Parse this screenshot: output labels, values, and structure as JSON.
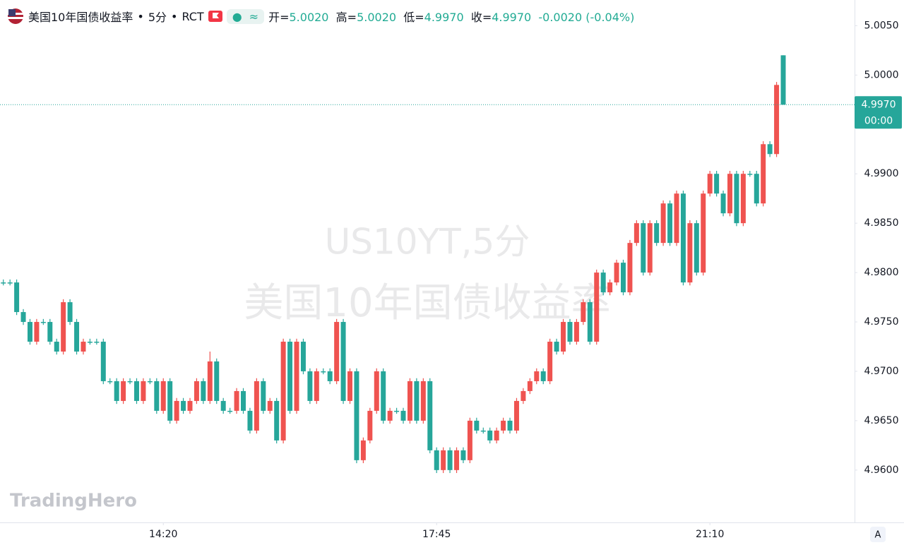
{
  "chart_data": {
    "type": "candlestick",
    "title": "美国10年国债收益率",
    "interval": "5分",
    "source": "RCT",
    "watermark": [
      "US10YT,5分",
      "美国10年国债收益率"
    ],
    "brand": "TradingHero",
    "ohlc_names": [
      "开=",
      "高=",
      "低=",
      "收="
    ],
    "last": {
      "open": 5.002,
      "high": 5.002,
      "low": 4.997,
      "close": 4.997,
      "change": -0.002,
      "change_pct": -0.04
    },
    "last_labels": {
      "open": "5.0020",
      "high": "5.0020",
      "low": "4.9970",
      "close": "4.9970",
      "change": "-0.0020",
      "change_pct": "(-0.04%)"
    },
    "current_price": {
      "value": 4.997,
      "label": "4.9970"
    },
    "countdown": "00:00",
    "scale_button": "A",
    "up_color": "#ef5350",
    "down_color": "#26a69a",
    "open": [
      4.979,
      4.979,
      4.979,
      4.976,
      4.975,
      4.973,
      4.975,
      4.975,
      4.973,
      4.972,
      4.977,
      4.975,
      4.972,
      4.973,
      4.973,
      4.973,
      4.969,
      4.969,
      4.967,
      4.969,
      4.969,
      4.967,
      4.969,
      4.969,
      4.966,
      4.969,
      4.965,
      4.967,
      4.966,
      4.967,
      4.969,
      4.967,
      4.971,
      4.967,
      4.966,
      4.966,
      4.968,
      4.966,
      4.964,
      4.969,
      4.966,
      4.967,
      4.963,
      4.973,
      4.966,
      4.973,
      4.97,
      4.967,
      4.97,
      4.97,
      4.969,
      4.975,
      4.967,
      4.97,
      4.961,
      4.963,
      4.966,
      4.97,
      4.965,
      4.966,
      4.966,
      4.965,
      4.969,
      4.965,
      4.969,
      4.962,
      4.96,
      4.962,
      4.96,
      4.962,
      4.961,
      4.965,
      4.964,
      4.964,
      4.963,
      4.964,
      4.965,
      4.964,
      4.967,
      4.968,
      4.969,
      4.97,
      4.969,
      4.973,
      4.972,
      4.975,
      4.973,
      4.975,
      4.977,
      4.973,
      4.98,
      4.978,
      4.979,
      4.981,
      4.978,
      4.983,
      4.985,
      4.98,
      4.985,
      4.983,
      4.987,
      4.983,
      4.988,
      4.979,
      4.985,
      4.98,
      4.988,
      4.99,
      4.988,
      4.986,
      4.99,
      4.985,
      4.99,
      4.99,
      4.987,
      4.993,
      4.992,
      5.002
    ],
    "high": [
      4.9793,
      4.9793,
      4.9793,
      4.9763,
      4.9753,
      4.9753,
      4.9753,
      4.9753,
      4.9733,
      4.9773,
      4.9773,
      4.9753,
      4.9733,
      4.9733,
      4.9733,
      4.9733,
      4.9693,
      4.9693,
      4.9693,
      4.9693,
      4.9693,
      4.9693,
      4.9693,
      4.9693,
      4.9693,
      4.9693,
      4.9673,
      4.9673,
      4.9673,
      4.9693,
      4.9693,
      4.972,
      4.9713,
      4.9673,
      4.9663,
      4.9683,
      4.9683,
      4.9663,
      4.9693,
      4.9693,
      4.9673,
      4.9673,
      4.9733,
      4.9733,
      4.9733,
      4.9733,
      4.9703,
      4.9703,
      4.9703,
      4.9703,
      4.9753,
      4.9753,
      4.9703,
      4.9703,
      4.9633,
      4.9663,
      4.9703,
      4.9703,
      4.9663,
      4.9663,
      4.9663,
      4.9693,
      4.9693,
      4.9693,
      4.9693,
      4.9623,
      4.9623,
      4.9623,
      4.9623,
      4.9623,
      4.9653,
      4.9653,
      4.9643,
      4.9643,
      4.9643,
      4.9653,
      4.9653,
      4.9673,
      4.9683,
      4.9693,
      4.9703,
      4.9703,
      4.9733,
      4.9733,
      4.9753,
      4.9753,
      4.9753,
      4.9773,
      4.9773,
      4.9803,
      4.9803,
      4.9793,
      4.9813,
      4.9813,
      4.9833,
      4.9853,
      4.9853,
      4.9853,
      4.9853,
      4.9873,
      4.9873,
      4.9883,
      4.9883,
      4.9853,
      4.9853,
      4.9883,
      4.9903,
      4.9903,
      4.9883,
      4.9903,
      4.9903,
      4.9903,
      4.9903,
      4.9903,
      4.9933,
      4.9933,
      4.9993,
      5.002
    ],
    "low": [
      4.9787,
      4.9787,
      4.9757,
      4.9747,
      4.9727,
      4.9727,
      4.9747,
      4.9727,
      4.9717,
      4.9717,
      4.9747,
      4.9717,
      4.9717,
      4.9727,
      4.9727,
      4.9687,
      4.9687,
      4.9667,
      4.9667,
      4.9687,
      4.9667,
      4.9667,
      4.9687,
      4.9657,
      4.9657,
      4.9647,
      4.9647,
      4.9657,
      4.9657,
      4.9667,
      4.9667,
      4.9667,
      4.9667,
      4.9657,
      4.9657,
      4.9657,
      4.9657,
      4.9637,
      4.9637,
      4.9657,
      4.9657,
      4.9627,
      4.9627,
      4.9657,
      4.9657,
      4.9697,
      4.9667,
      4.9667,
      4.9697,
      4.9687,
      4.9687,
      4.9667,
      4.9667,
      4.9607,
      4.9607,
      4.9627,
      4.9657,
      4.9647,
      4.9647,
      4.9657,
      4.9647,
      4.9647,
      4.9647,
      4.9647,
      4.9617,
      4.9597,
      4.9597,
      4.9597,
      4.9597,
      4.9607,
      4.9607,
      4.9637,
      4.9637,
      4.9627,
      4.9627,
      4.9637,
      4.9637,
      4.9637,
      4.9667,
      4.9677,
      4.9687,
      4.9687,
      4.9687,
      4.9717,
      4.9717,
      4.9727,
      4.9727,
      4.9747,
      4.9727,
      4.9727,
      4.9777,
      4.9777,
      4.9787,
      4.9777,
      4.9777,
      4.9827,
      4.9797,
      4.9797,
      4.9827,
      4.9827,
      4.9827,
      4.9827,
      4.9787,
      4.9787,
      4.9797,
      4.9797,
      4.9877,
      4.9877,
      4.9857,
      4.9857,
      4.9847,
      4.9847,
      4.9897,
      4.9867,
      4.9867,
      4.9917,
      4.9917,
      4.997
    ],
    "close": [
      4.979,
      4.979,
      4.976,
      4.975,
      4.973,
      4.975,
      4.975,
      4.973,
      4.972,
      4.977,
      4.975,
      4.972,
      4.973,
      4.973,
      4.973,
      4.969,
      4.969,
      4.967,
      4.969,
      4.969,
      4.967,
      4.969,
      4.969,
      4.966,
      4.969,
      4.965,
      4.967,
      4.966,
      4.967,
      4.969,
      4.967,
      4.971,
      4.967,
      4.966,
      4.966,
      4.968,
      4.966,
      4.964,
      4.969,
      4.966,
      4.967,
      4.963,
      4.973,
      4.966,
      4.973,
      4.97,
      4.967,
      4.97,
      4.97,
      4.969,
      4.975,
      4.967,
      4.97,
      4.961,
      4.963,
      4.966,
      4.97,
      4.965,
      4.966,
      4.966,
      4.965,
      4.969,
      4.965,
      4.969,
      4.962,
      4.96,
      4.962,
      4.96,
      4.962,
      4.961,
      4.965,
      4.964,
      4.964,
      4.963,
      4.964,
      4.965,
      4.964,
      4.967,
      4.968,
      4.969,
      4.97,
      4.969,
      4.973,
      4.972,
      4.975,
      4.973,
      4.975,
      4.977,
      4.973,
      4.98,
      4.978,
      4.979,
      4.981,
      4.978,
      4.983,
      4.985,
      4.98,
      4.985,
      4.983,
      4.987,
      4.983,
      4.988,
      4.979,
      4.985,
      4.98,
      4.988,
      4.99,
      4.988,
      4.986,
      4.99,
      4.985,
      4.99,
      4.99,
      4.987,
      4.993,
      4.992,
      4.999,
      4.997
    ],
    "xlim": [
      -0.5,
      127.7
    ],
    "xticks": [
      {
        "value": 24,
        "label": "14:20"
      },
      {
        "value": 65,
        "label": "17:45"
      },
      {
        "value": 106,
        "label": "21:10"
      }
    ],
    "ylim": [
      4.9547,
      5.0076
    ],
    "yticks": [
      {
        "value": 5.005,
        "label": "5.0050"
      },
      {
        "value": 5.0,
        "label": "5.0000"
      },
      {
        "value": 4.99,
        "label": "4.9900"
      },
      {
        "value": 4.985,
        "label": "4.9850"
      },
      {
        "value": 4.98,
        "label": "4.9800"
      },
      {
        "value": 4.975,
        "label": "4.9750"
      },
      {
        "value": 4.97,
        "label": "4.9700"
      },
      {
        "value": 4.965,
        "label": "4.9650"
      },
      {
        "value": 4.96,
        "label": "4.9600"
      }
    ]
  }
}
